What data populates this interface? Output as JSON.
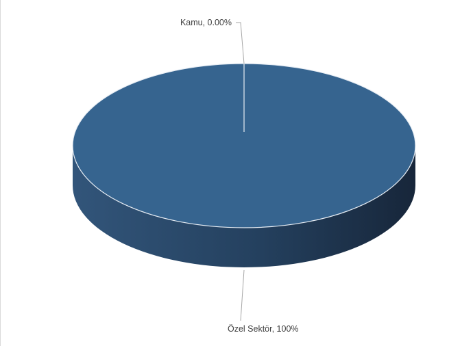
{
  "chart_data": {
    "type": "pie",
    "variant": "3d",
    "title": "",
    "categories": [
      "Kamu",
      "Özel Sektör"
    ],
    "values": [
      0.0,
      100
    ],
    "labels": [
      "Kamu, 0.00%",
      "Özel Sektör, 100%"
    ],
    "colors": {
      "slice_top": "#36648f",
      "side_light": "#32557a",
      "side_dark": "#17263a",
      "edge": "#e8eef5",
      "leader": "#a6a6a6"
    }
  }
}
